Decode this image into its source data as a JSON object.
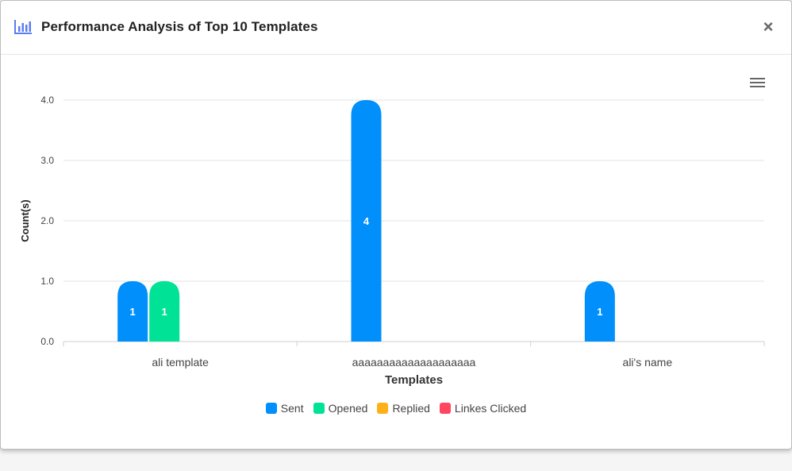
{
  "modal": {
    "title": "Performance Analysis of Top 10 Templates",
    "close_label": "×",
    "title_icon": "bar-chart-icon",
    "menu_icon": "hamburger-menu-icon"
  },
  "chart_data": {
    "type": "bar",
    "categories": [
      "ali template",
      "aaaaaaaaaaaaaaaaaaaa",
      "ali's name"
    ],
    "series": [
      {
        "name": "Sent",
        "color": "#008ffb",
        "values": [
          1,
          4,
          1
        ]
      },
      {
        "name": "Opened",
        "color": "#00e396",
        "values": [
          1,
          0,
          0
        ]
      },
      {
        "name": "Replied",
        "color": "#feb019",
        "values": [
          0,
          0,
          0
        ]
      },
      {
        "name": "Linkes Clicked",
        "color": "#ff4560",
        "values": [
          0,
          0,
          0
        ]
      }
    ],
    "yticks": [
      "0.0",
      "1.0",
      "2.0",
      "3.0",
      "4.0"
    ],
    "ylim": [
      0,
      4
    ],
    "xlabel": "Templates",
    "ylabel": "Count(s)",
    "grid": true,
    "legend": "bottom"
  }
}
